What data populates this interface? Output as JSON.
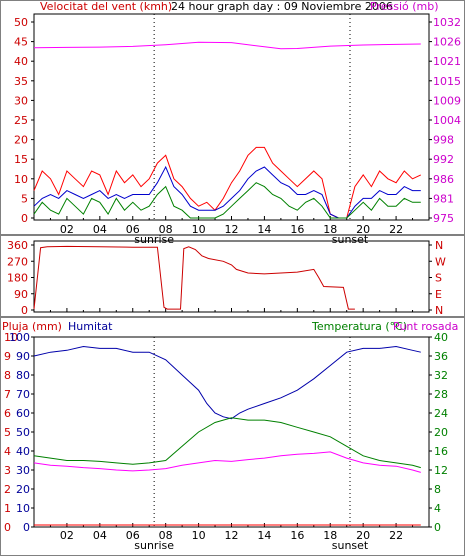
{
  "header": {
    "wind_title": "Velocitat del vent (kmh)",
    "main_title": "24 hour graph day : 09 Noviembre 2006",
    "pressure_title": "Pressió (mb)"
  },
  "time_axis": {
    "ticks": [
      "02",
      "04",
      "06",
      "08",
      "10",
      "12",
      "14",
      "16",
      "18",
      "20",
      "22"
    ],
    "tick_hours": [
      2,
      4,
      6,
      8,
      10,
      12,
      14,
      16,
      18,
      20,
      22
    ],
    "sunrise_label": "sunrise",
    "sunset_label": "sunset",
    "sunrise_hour": 7.3,
    "sunset_hour": 19.2
  },
  "chart_data": [
    {
      "type": "line",
      "title": "24 hour graph day : 09 Noviembre 2006",
      "xlim": [
        0,
        24
      ],
      "left_axis": {
        "label": "Velocitat del vent (kmh)",
        "ticks": [
          "0",
          "5",
          "10",
          "15",
          "20",
          "25",
          "30",
          "35",
          "40",
          "45",
          "50"
        ],
        "ylim": [
          0,
          50
        ]
      },
      "right_axis": {
        "label": "Pressió (mb)",
        "ticks": [
          "975",
          "981",
          "986",
          "992",
          "998",
          "1004",
          "1009",
          "1015",
          "1021",
          "1026",
          "1032"
        ],
        "ylim": [
          975,
          1032
        ]
      },
      "series": [
        {
          "name": "Velocitat del vent (kmh)",
          "color": "#ff0000",
          "axis": "left",
          "x": [
            0,
            0.5,
            1,
            1.5,
            2,
            2.5,
            3,
            3.5,
            4,
            4.5,
            5,
            5.5,
            6,
            6.5,
            7,
            7.5,
            8,
            8.5,
            9,
            9.5,
            10,
            10.5,
            11,
            11.5,
            12,
            12.5,
            13,
            13.5,
            14,
            14.5,
            15,
            15.5,
            16,
            16.5,
            17,
            17.5,
            18,
            18.5,
            19,
            19.5,
            20,
            20.5,
            21,
            21.5,
            22,
            22.5,
            23,
            23.5
          ],
          "y": [
            7,
            12,
            10,
            6,
            12,
            10,
            8,
            12,
            11,
            6,
            12,
            9,
            11,
            8,
            10,
            14,
            16,
            10,
            8,
            5,
            3,
            4,
            2,
            5,
            9,
            12,
            16,
            18,
            18,
            14,
            12,
            10,
            8,
            10,
            12,
            10,
            1,
            0,
            0,
            8,
            11,
            8,
            12,
            10,
            9,
            12,
            10,
            11
          ]
        },
        {
          "name": "",
          "color": "#0000cc",
          "axis": "left",
          "x": [
            0,
            0.5,
            1,
            1.5,
            2,
            2.5,
            3,
            3.5,
            4,
            4.5,
            5,
            5.5,
            6,
            6.5,
            7,
            7.5,
            8,
            8.5,
            9,
            9.5,
            10,
            10.5,
            11,
            11.5,
            12,
            12.5,
            13,
            13.5,
            14,
            14.5,
            15,
            15.5,
            16,
            16.5,
            17,
            17.5,
            18,
            18.5,
            19,
            19.5,
            20,
            20.5,
            21,
            21.5,
            22,
            22.5,
            23,
            23.5
          ],
          "y": [
            3,
            5,
            6,
            5,
            7,
            6,
            5,
            6,
            7,
            5,
            6,
            5,
            6,
            6,
            6,
            9,
            13,
            8,
            6,
            3,
            2,
            2,
            2,
            3,
            5,
            7,
            10,
            12,
            13,
            11,
            9,
            8,
            6,
            6,
            7,
            6,
            1,
            0,
            0,
            3,
            5,
            5,
            7,
            6,
            6,
            8,
            7,
            7
          ]
        },
        {
          "name": "",
          "color": "#008000",
          "axis": "left",
          "x": [
            0,
            0.5,
            1,
            1.5,
            2,
            2.5,
            3,
            3.5,
            4,
            4.5,
            5,
            5.5,
            6,
            6.5,
            7,
            7.5,
            8,
            8.5,
            9,
            9.5,
            10,
            10.5,
            11,
            11.5,
            12,
            12.5,
            13,
            13.5,
            14,
            14.5,
            15,
            15.5,
            16,
            16.5,
            17,
            17.5,
            18,
            18.5,
            19,
            19.5,
            20,
            20.5,
            21,
            21.5,
            22,
            22.5,
            23,
            23.5
          ],
          "y": [
            1,
            4,
            2,
            1,
            5,
            3,
            1,
            5,
            4,
            1,
            5,
            2,
            4,
            2,
            3,
            6,
            8,
            3,
            2,
            0,
            0,
            0,
            0,
            1,
            3,
            5,
            7,
            9,
            8,
            6,
            5,
            3,
            2,
            4,
            5,
            3,
            0,
            0,
            0,
            2,
            4,
            2,
            5,
            3,
            3,
            5,
            4,
            4
          ]
        },
        {
          "name": "Pressió (mb)",
          "color": "#ff00ff",
          "axis": "right",
          "x": [
            0,
            2,
            4,
            6,
            8,
            10,
            12,
            14,
            15,
            16,
            18,
            20,
            22,
            23.5
          ],
          "y": [
            1024.5,
            1024.6,
            1024.7,
            1024.9,
            1025.4,
            1026.1,
            1026.0,
            1024.8,
            1024.2,
            1024.3,
            1025.0,
            1025.3,
            1025.5,
            1025.6
          ]
        }
      ]
    },
    {
      "type": "line",
      "xlim": [
        0,
        24
      ],
      "left_axis": {
        "ticks": [
          "360",
          "270",
          "180",
          "90",
          "0"
        ],
        "ylim": [
          0,
          360
        ]
      },
      "right_axis": {
        "ticks": [
          "N",
          "W",
          "S",
          "E",
          "N"
        ]
      },
      "series": [
        {
          "name": "",
          "color": "#cc0000",
          "x": [
            0,
            0.4,
            0.8,
            2,
            4,
            6,
            7.5,
            7.9,
            8.1,
            8.9,
            9.1,
            9.4,
            9.8,
            10.2,
            10.6,
            11.5,
            12,
            12.3,
            13,
            14,
            15,
            16,
            17,
            17.3,
            17.6,
            18.8,
            19.1,
            19.5
          ],
          "y": [
            5,
            345,
            350,
            352,
            350,
            348,
            348,
            15,
            5,
            5,
            340,
            350,
            335,
            300,
            285,
            270,
            250,
            225,
            205,
            200,
            205,
            210,
            225,
            180,
            130,
            125,
            5,
            5
          ]
        }
      ]
    },
    {
      "type": "line",
      "xlim": [
        0,
        24
      ],
      "left_outer_axis": {
        "label": "Pluja (mm)",
        "ticks": [
          "0",
          "1",
          "2",
          "3",
          "4",
          "5",
          "6",
          "7",
          "8",
          "9",
          "10"
        ],
        "ylim": [
          0,
          10
        ]
      },
      "left_inner_axis": {
        "label": "Humitat",
        "ticks": [
          "0",
          "10",
          "20",
          "30",
          "40",
          "50",
          "60",
          "70",
          "80",
          "90",
          "100"
        ],
        "ylim": [
          0,
          100
        ]
      },
      "right_inner_axis": {
        "label": "Temperatura (°C)",
        "ticks": [
          "0",
          "4",
          "8",
          "12",
          "16",
          "20",
          "24",
          "28",
          "32",
          "36",
          "40"
        ],
        "ylim": [
          0,
          40
        ]
      },
      "right_outer_axis": {
        "label": "Punt rosada"
      },
      "series": [
        {
          "name": "Humitat",
          "color": "#0000aa",
          "axis": "left_inner",
          "x": [
            0,
            1,
            2,
            3,
            4,
            5,
            6,
            7,
            8,
            9,
            10,
            10.5,
            11,
            11.5,
            12,
            12.5,
            13,
            14,
            15,
            16,
            17,
            18,
            19,
            20,
            21,
            22,
            23,
            23.5
          ],
          "y": [
            90,
            92,
            93,
            95,
            94,
            94,
            92,
            92,
            88,
            80,
            72,
            65,
            60,
            58,
            57,
            60,
            62,
            65,
            68,
            72,
            78,
            85,
            92,
            94,
            94,
            95,
            93,
            92
          ]
        },
        {
          "name": "Temperatura (°C)",
          "color": "#008000",
          "axis": "right_inner",
          "x": [
            0,
            1,
            2,
            3,
            4,
            5,
            6,
            7,
            8,
            9,
            10,
            11,
            12,
            13,
            14,
            15,
            16,
            17,
            18,
            19,
            20,
            21,
            22,
            23,
            23.5
          ],
          "y": [
            15,
            14.5,
            14,
            14,
            13.8,
            13.5,
            13.2,
            13.5,
            14,
            17,
            20,
            22,
            23,
            22.5,
            22.5,
            22,
            21,
            20,
            19,
            17,
            15,
            14,
            13.5,
            13,
            12.5
          ]
        },
        {
          "name": "Punt rosada",
          "color": "#ff00ff",
          "axis": "right_inner",
          "x": [
            0,
            1,
            2,
            3,
            4,
            5,
            6,
            7,
            8,
            9,
            10,
            11,
            12,
            13,
            14,
            15,
            16,
            17,
            18,
            19,
            20,
            21,
            22,
            23,
            23.5
          ],
          "y": [
            13.5,
            13,
            12.8,
            12.5,
            12.3,
            12,
            11.8,
            12,
            12.3,
            13,
            13.5,
            14,
            13.8,
            14.2,
            14.5,
            15,
            15.3,
            15.5,
            15.8,
            14.5,
            13.5,
            13,
            12.8,
            12,
            11.5
          ]
        },
        {
          "name": "Pluja (mm)",
          "color": "#ff0000",
          "axis": "left_outer",
          "x": [
            0,
            23.5
          ],
          "y": [
            0,
            0
          ]
        }
      ]
    }
  ]
}
